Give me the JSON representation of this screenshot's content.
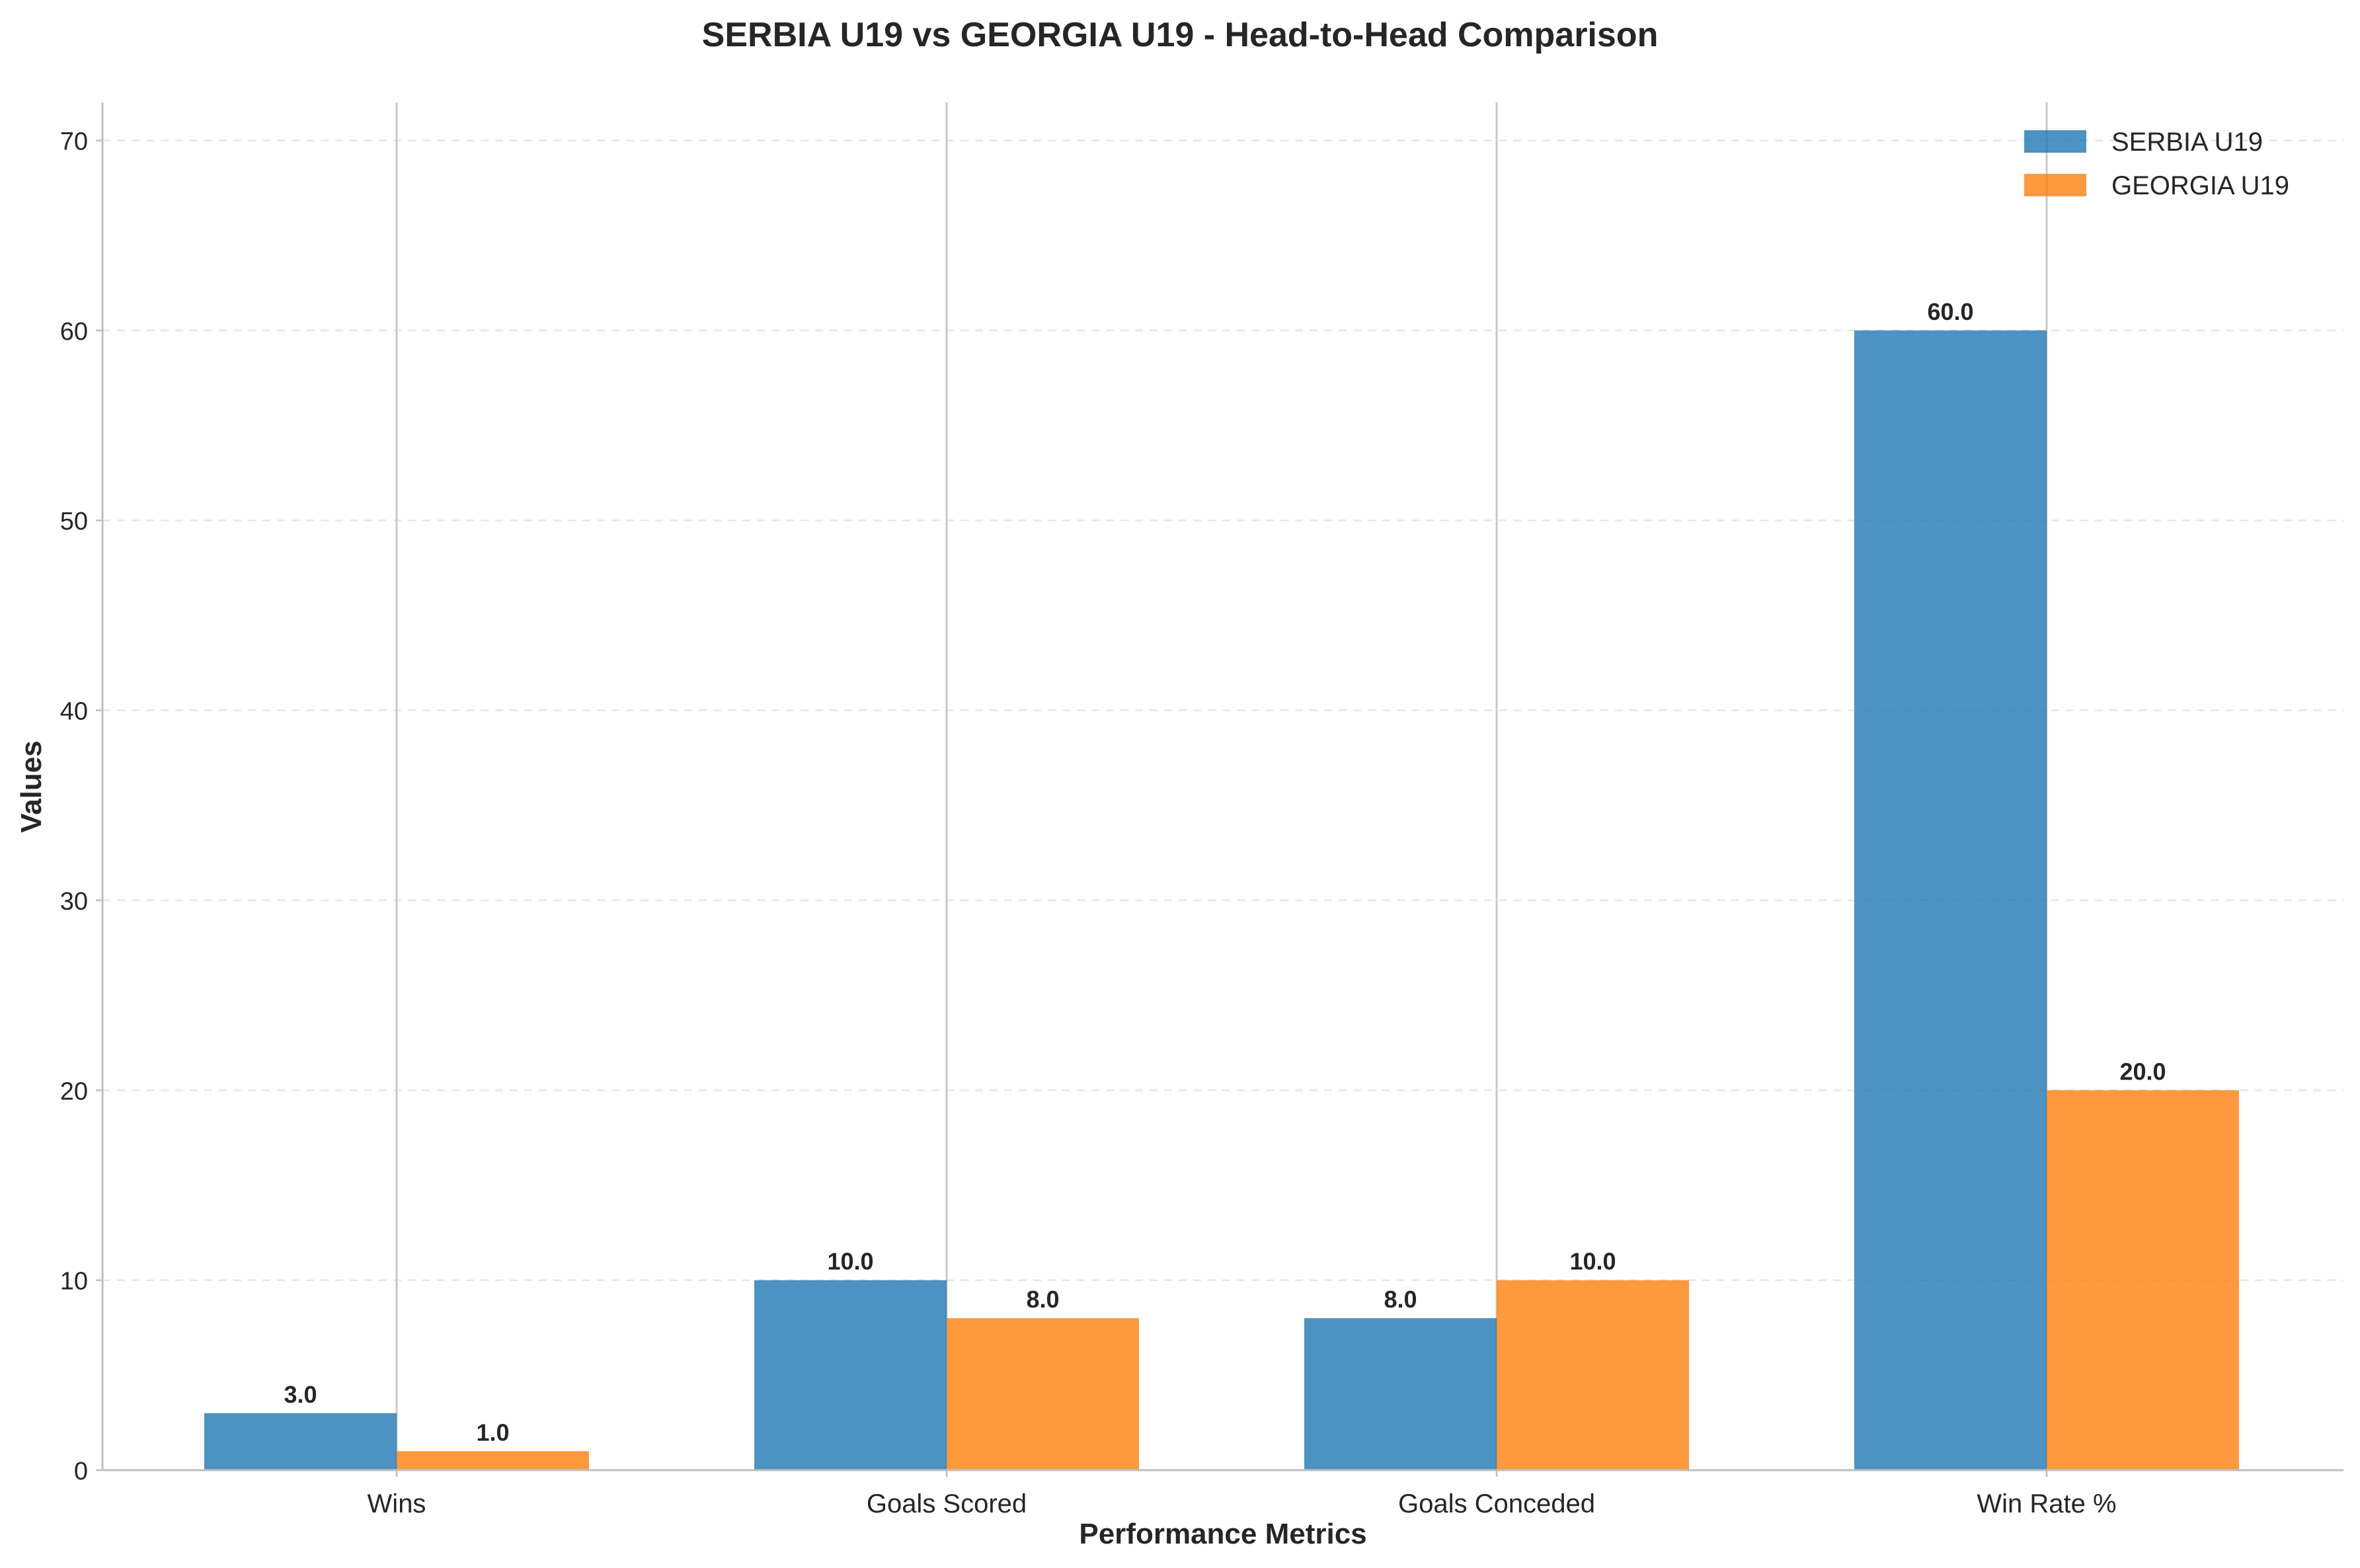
{
  "chart_data": {
    "type": "bar",
    "title": "SERBIA U19 vs GEORGIA U19 - Head-to-Head Comparison",
    "xlabel": "Performance Metrics",
    "ylabel": "Values",
    "categories": [
      "Wins",
      "Goals Scored",
      "Goals Conceded",
      "Win Rate %"
    ],
    "series": [
      {
        "name": "SERBIA U19",
        "values": [
          3.0,
          10.0,
          8.0,
          60.0
        ],
        "color": "#1f77b4"
      },
      {
        "name": "GEORGIA U19",
        "values": [
          1.0,
          8.0,
          10.0,
          20.0
        ],
        "color": "#ff7f0e"
      }
    ],
    "ylim": [
      0,
      72
    ],
    "yticks": [
      0,
      10,
      20,
      30,
      40,
      50,
      60,
      70
    ],
    "grid": "y-dashed",
    "legend": "top-right",
    "value_label_format": "0.0"
  }
}
